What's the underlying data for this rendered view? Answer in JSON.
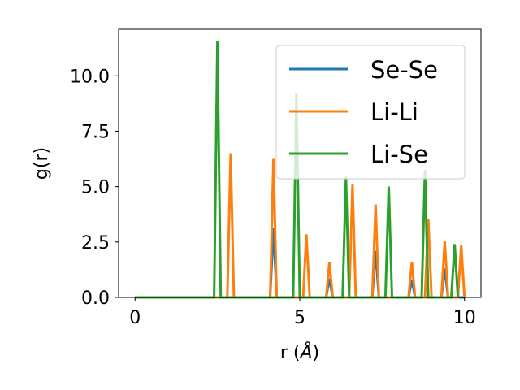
{
  "chart_data": {
    "type": "line",
    "xlabel": "r (",
    "xlabel_unit": "Å",
    "xlabel_close": ")",
    "ylabel": "g(r)",
    "xlim": [
      -0.5,
      10.5
    ],
    "ylim": [
      0,
      12.1
    ],
    "x_ticks": [
      0,
      5,
      10
    ],
    "x_tick_labels": [
      "0",
      "5",
      "10"
    ],
    "y_ticks": [
      0,
      2.5,
      5,
      7.5,
      10
    ],
    "y_tick_labels": [
      "0.0",
      "2.5",
      "5.0",
      "7.5",
      "10.0"
    ],
    "grid": false,
    "legend_position": "top-right",
    "peak_half_width": 0.1,
    "series": [
      {
        "name": "Se-Se",
        "color": "#1f77b4",
        "x_range": [
          0,
          10
        ],
        "peaks": [
          [
            4.2,
            3.15
          ],
          [
            5.9,
            0.85
          ],
          [
            7.3,
            2.1
          ],
          [
            8.4,
            0.8
          ],
          [
            9.4,
            1.3
          ]
        ]
      },
      {
        "name": "Li-Li",
        "color": "#ff7f0e",
        "x_range": [
          0,
          10
        ],
        "peaks": [
          [
            2.9,
            6.5
          ],
          [
            4.2,
            6.25
          ],
          [
            5.2,
            2.85
          ],
          [
            5.9,
            1.6
          ],
          [
            6.6,
            5.1
          ],
          [
            7.3,
            4.2
          ],
          [
            8.4,
            1.6
          ],
          [
            8.9,
            3.55
          ],
          [
            9.4,
            2.55
          ],
          [
            9.9,
            2.35
          ]
        ]
      },
      {
        "name": "Li-Se",
        "color": "#2ca02c",
        "x_range": [
          0,
          9.8
        ],
        "peaks": [
          [
            2.5,
            11.55
          ],
          [
            4.9,
            9.2
          ],
          [
            6.4,
            5.45
          ],
          [
            7.7,
            5.0
          ],
          [
            8.8,
            5.75
          ],
          [
            9.7,
            2.4
          ]
        ]
      }
    ]
  }
}
